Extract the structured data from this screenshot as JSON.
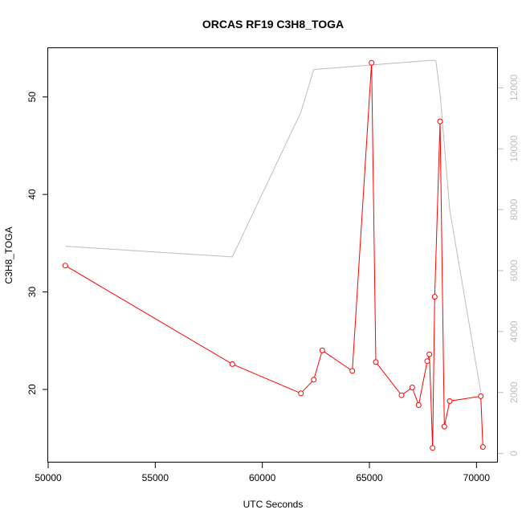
{
  "chart_data": {
    "type": "line",
    "title": "ORCAS RF19 C3H8_TOGA",
    "xlabel": "UTC Seconds",
    "ylabel": "C3H8_TOGA",
    "xlim": [
      50000,
      71000
    ],
    "ylim_left": [
      12.5,
      55
    ],
    "ylim_right": [
      -300,
      13300
    ],
    "x_ticks": [
      "50000",
      "55000",
      "60000",
      "65000",
      "70000"
    ],
    "x_tick_values": [
      50000,
      55000,
      60000,
      65000,
      70000
    ],
    "y_left_ticks": [
      "20",
      "30",
      "40",
      "50"
    ],
    "y_left_tick_values": [
      20,
      30,
      40,
      50
    ],
    "y_right_ticks": [
      "0",
      "2000",
      "4000",
      "6000",
      "8000",
      "10000",
      "12000"
    ],
    "y_right_tick_values": [
      0,
      2000,
      4000,
      6000,
      8000,
      10000,
      12000
    ],
    "colors": {
      "primary": "#ff0000",
      "secondary": "#bdbdbd",
      "axis": "#000000"
    },
    "series": [
      {
        "axis": "left",
        "color": "#ff0000",
        "markers": "open-circle",
        "x": [
          50800,
          58600,
          61800,
          62400,
          62800,
          64200,
          65100,
          65300,
          66500,
          67000,
          67300,
          67700,
          67800,
          67950,
          68050,
          68300,
          68500,
          68750,
          70200,
          70300
        ],
        "y": [
          32.7,
          22.6,
          19.6,
          21.0,
          24.0,
          21.9,
          53.5,
          22.8,
          19.4,
          20.2,
          18.4,
          22.9,
          23.6,
          14.0,
          29.5,
          47.5,
          16.2,
          18.8,
          19.3,
          14.1
        ]
      },
      {
        "axis": "right",
        "color": "#bdbdbd",
        "markers": "none",
        "x": [
          50800,
          58600,
          61800,
          62400,
          65100,
          67800,
          68100,
          68300,
          68750,
          70200
        ],
        "y": [
          6800,
          6450,
          11200,
          12600,
          12750,
          12900,
          12900,
          11800,
          8000,
          2000
        ]
      }
    ]
  }
}
